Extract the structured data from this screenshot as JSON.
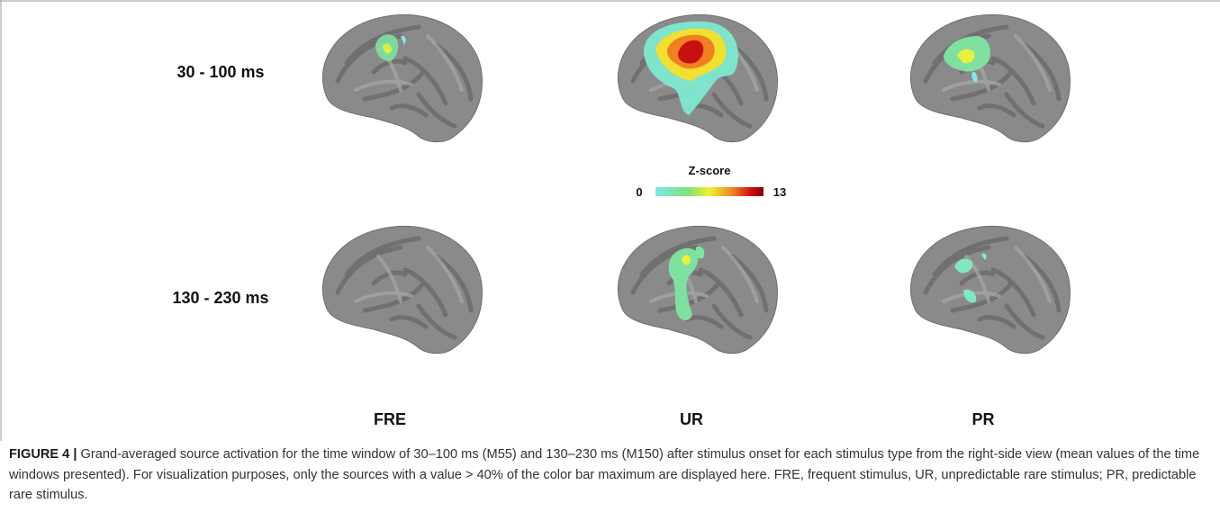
{
  "figure": {
    "row_labels": [
      "30 - 100 ms",
      "130 - 230 ms"
    ],
    "column_labels": [
      "FRE",
      "UR",
      "PR"
    ],
    "colorbar": {
      "title": "Z-score",
      "min": 0,
      "max": 13
    },
    "caption": {
      "label": "FIGURE 4 |",
      "text": "Grand-averaged source activation for the time window of 30–100 ms (M55) and 130–230 ms (M150) after stimulus onset for each stimulus type from the right-side view (mean values of the time windows presented). For visualization purposes, only the sources with a value > 40% of the color bar maximum are displayed here. FRE, frequent stimulus, UR, unpredictable rare stimulus; PR, predictable rare stimulus."
    }
  }
}
